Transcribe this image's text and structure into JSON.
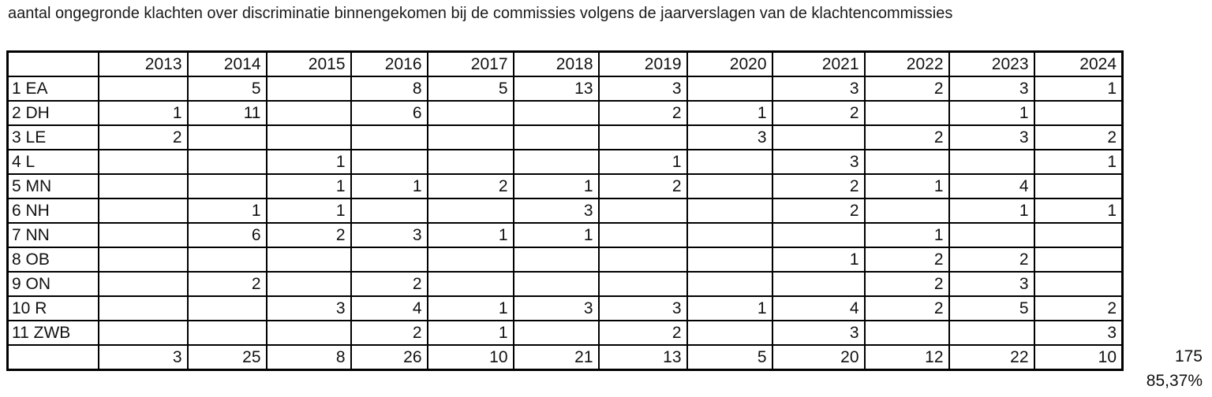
{
  "title": "aantal ongegronde klachten over discriminatie binnengekomen bij de commissies volgens de jaarverslagen van de klachtencommissies",
  "chart_data": {
    "type": "table",
    "columns": [
      "",
      "2013",
      "2014",
      "2015",
      "2016",
      "2017",
      "2018",
      "2019",
      "2020",
      "2021",
      "2022",
      "2023",
      "2024"
    ],
    "rows": [
      {
        "label": "1 EA",
        "values": [
          "",
          "5",
          "",
          "8",
          "5",
          "13",
          "3",
          "",
          "3",
          "2",
          "3",
          "1"
        ]
      },
      {
        "label": "2 DH",
        "values": [
          "1",
          "11",
          "",
          "6",
          "",
          "",
          "2",
          "1",
          "2",
          "",
          "1",
          ""
        ]
      },
      {
        "label": "3 LE",
        "values": [
          "2",
          "",
          "",
          "",
          "",
          "",
          "",
          "3",
          "",
          "2",
          "3",
          "2"
        ]
      },
      {
        "label": "4 L",
        "values": [
          "",
          "",
          "1",
          "",
          "",
          "",
          "1",
          "",
          "3",
          "",
          "",
          "1"
        ]
      },
      {
        "label": "5 MN",
        "values": [
          "",
          "",
          "1",
          "1",
          "2",
          "1",
          "2",
          "",
          "2",
          "1",
          "4",
          ""
        ]
      },
      {
        "label": "6 NH",
        "values": [
          "",
          "1",
          "1",
          "",
          "",
          "3",
          "",
          "",
          "2",
          "",
          "1",
          "1"
        ]
      },
      {
        "label": "7 NN",
        "values": [
          "",
          "6",
          "2",
          "3",
          "1",
          "1",
          "",
          "",
          "",
          "1",
          "",
          ""
        ]
      },
      {
        "label": "8 OB",
        "values": [
          "",
          "",
          "",
          "",
          "",
          "",
          "",
          "",
          "1",
          "2",
          "2",
          ""
        ]
      },
      {
        "label": "9 ON",
        "values": [
          "",
          "2",
          "",
          "2",
          "",
          "",
          "",
          "",
          "",
          "2",
          "3",
          ""
        ]
      },
      {
        "label": "10 R",
        "values": [
          "",
          "",
          "3",
          "4",
          "1",
          "3",
          "3",
          "1",
          "4",
          "2",
          "5",
          "2"
        ]
      },
      {
        "label": "11 ZWB",
        "values": [
          "",
          "",
          "",
          "2",
          "1",
          "",
          "2",
          "",
          "3",
          "",
          "",
          "3"
        ]
      }
    ],
    "totals_row": {
      "label": "",
      "values": [
        "3",
        "25",
        "8",
        "26",
        "10",
        "21",
        "13",
        "5",
        "20",
        "12",
        "22",
        "10"
      ]
    },
    "grand_total": "175",
    "percentage": "85,37%"
  }
}
